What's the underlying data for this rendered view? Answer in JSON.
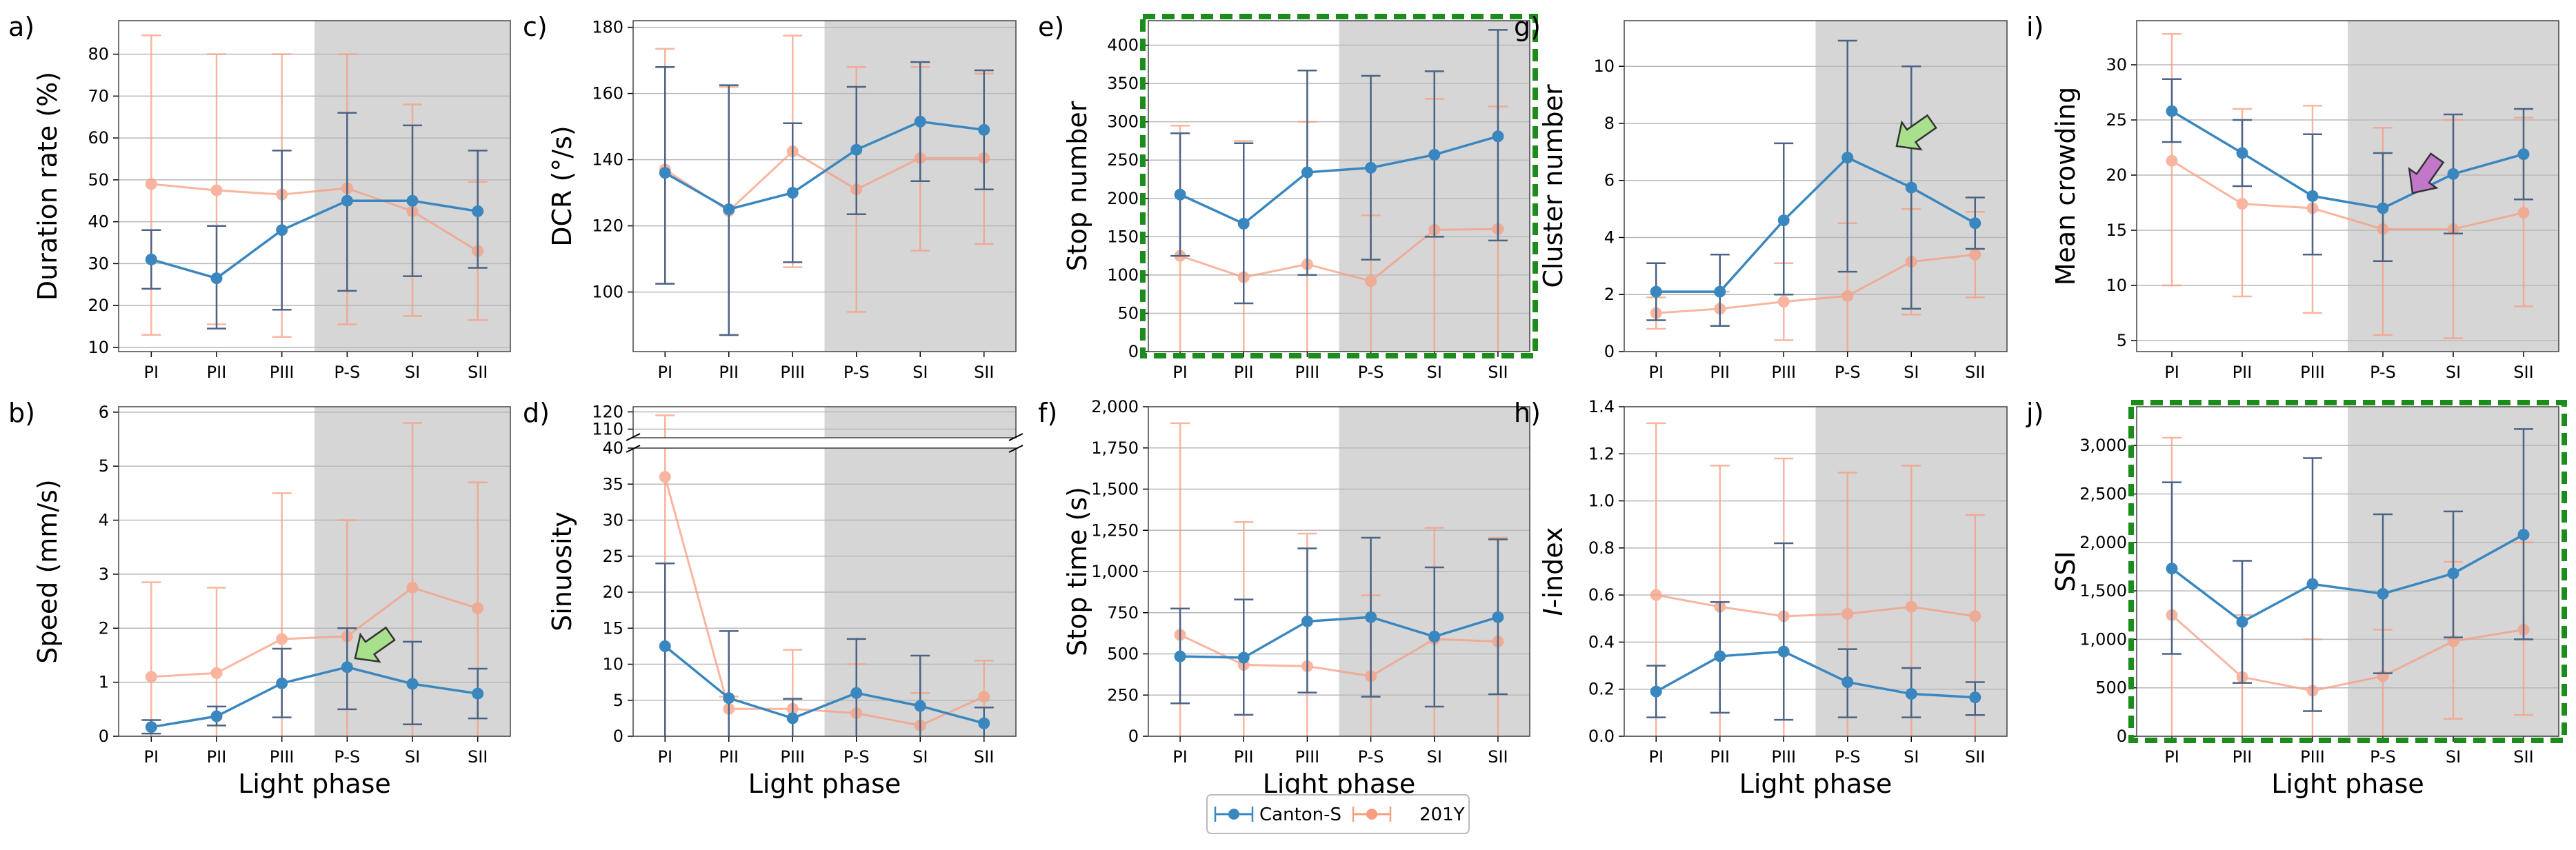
{
  "legend": {
    "series": [
      "Canton-S",
      "201Y"
    ]
  },
  "colors": {
    "canton": "#3a87c0",
    "y201": "#f79d80",
    "dark": "#4b6384",
    "shade": "#d6d6d6",
    "highlight": "#1c8d1c",
    "arrow_green": "#a8e08c",
    "arrow_purple": "#c377c9"
  },
  "chart_data": [
    {
      "id": "a",
      "label": "a)",
      "type": "line",
      "ylabel": "Duration rate (%)",
      "xlabel": "",
      "categories": [
        "PI",
        "PII",
        "PIII",
        "P-S",
        "SI",
        "SII"
      ],
      "ylim": [
        9,
        88
      ],
      "yticks": [
        10,
        20,
        30,
        40,
        50,
        60,
        70,
        80
      ],
      "ytick_labels": [
        "10",
        "20",
        "30",
        "40",
        "50",
        "60",
        "70",
        "80"
      ],
      "series": [
        {
          "name": "Canton-S",
          "values": [
            31,
            26.5,
            38,
            45,
            45,
            42.5
          ],
          "err_lo": [
            24,
            14.5,
            19,
            23.5,
            27,
            29
          ],
          "err_hi": [
            38,
            39,
            57,
            66,
            63,
            57
          ]
        },
        {
          "name": "201Y",
          "values": [
            49,
            47.5,
            46.5,
            48,
            42.5,
            33
          ],
          "err_lo": [
            13,
            15.5,
            12.5,
            15.5,
            17.5,
            16.5
          ],
          "err_hi": [
            84.5,
            80,
            80,
            80,
            68,
            49.5
          ]
        }
      ]
    },
    {
      "id": "b",
      "label": "b)",
      "type": "line",
      "ylabel": "Speed (mm/s)",
      "xlabel": "Light phase",
      "categories": [
        "PI",
        "PII",
        "PIII",
        "P-S",
        "SI",
        "SII"
      ],
      "ylim": [
        0,
        6.1
      ],
      "yticks": [
        0,
        1,
        2,
        3,
        4,
        5,
        6
      ],
      "ytick_labels": [
        "0",
        "1",
        "2",
        "3",
        "4",
        "5",
        "6"
      ],
      "series": [
        {
          "name": "Canton-S",
          "values": [
            0.17,
            0.37,
            0.98,
            1.28,
            0.97,
            0.79
          ],
          "err_lo": [
            0.05,
            0.2,
            0.35,
            0.5,
            0.22,
            0.33
          ],
          "err_hi": [
            0.3,
            0.55,
            1.62,
            2.0,
            1.75,
            1.25
          ]
        },
        {
          "name": "201Y",
          "values": [
            1.1,
            1.17,
            1.8,
            1.85,
            2.75,
            2.37
          ],
          "err_lo": [
            0,
            0,
            0,
            0,
            0,
            0
          ],
          "err_hi": [
            2.85,
            2.75,
            4.5,
            4.0,
            5.8,
            4.7
          ]
        }
      ]
    },
    {
      "id": "c",
      "label": "c)",
      "type": "line",
      "ylabel": "DCR (°/s)",
      "xlabel": "",
      "categories": [
        "PI",
        "PII",
        "PIII",
        "P-S",
        "SI",
        "SII"
      ],
      "ylim": [
        82,
        182
      ],
      "yticks": [
        100,
        120,
        140,
        160,
        180
      ],
      "ytick_labels": [
        "100",
        "120",
        "140",
        "160",
        "180"
      ],
      "series": [
        {
          "name": "Canton-S",
          "values": [
            136,
            125,
            130,
            143,
            151.5,
            149
          ],
          "err_lo": [
            102.5,
            87,
            109,
            123.5,
            133.5,
            131
          ],
          "err_hi": [
            168,
            162.5,
            151,
            162,
            169.5,
            167
          ]
        },
        {
          "name": "201Y",
          "values": [
            137,
            124.5,
            142.5,
            131,
            140.5,
            140.5
          ],
          "err_lo": [
            102.5,
            87,
            107.5,
            94,
            112.5,
            114.5
          ],
          "err_hi": [
            173.5,
            162,
            177.5,
            168,
            168,
            166
          ]
        }
      ]
    },
    {
      "id": "d",
      "label": "d)",
      "type": "line",
      "ylabel": "Sinuosity",
      "xlabel": "Light phase",
      "categories": [
        "PI",
        "PII",
        "PIII",
        "P-S",
        "SI",
        "SII"
      ],
      "ylim": [
        0,
        40
      ],
      "yticks": [
        0,
        5,
        10,
        15,
        20,
        25,
        30,
        35,
        40
      ],
      "ytick_labels": [
        "0",
        "5",
        "10",
        "15",
        "20",
        "25",
        "30",
        "35",
        "40"
      ],
      "upper_ylim": [
        105,
        123
      ],
      "upper_yticks": [
        110,
        120
      ],
      "upper_ytick_labels": [
        "110",
        "120"
      ],
      "series": [
        {
          "name": "Canton-S",
          "values": [
            12.5,
            5.3,
            2.5,
            6,
            4.2,
            1.8
          ],
          "err_lo": [
            0,
            0,
            0,
            0,
            0,
            0
          ],
          "err_hi": [
            24,
            14.6,
            5.2,
            13.5,
            11.2,
            4
          ],
          "err_hi_over": [
            null,
            null,
            null,
            null,
            null,
            null
          ]
        },
        {
          "name": "201Y",
          "values": [
            36,
            3.8,
            3.8,
            3.2,
            1.5,
            5.5
          ],
          "err_lo": [
            0,
            0,
            0,
            0,
            0,
            0
          ],
          "err_hi": [
            40,
            5.5,
            12,
            10,
            6,
            10.5
          ],
          "err_hi_over": [
            118,
            null,
            null,
            null,
            null,
            null
          ]
        }
      ]
    },
    {
      "id": "e",
      "label": "e)",
      "type": "line",
      "ylabel": "Stop number",
      "xlabel": "",
      "highlight": true,
      "categories": [
        "PI",
        "PII",
        "PIII",
        "P-S",
        "SI",
        "SII"
      ],
      "ylim": [
        0,
        432
      ],
      "yticks": [
        0,
        50,
        100,
        150,
        200,
        250,
        300,
        350,
        400
      ],
      "ytick_labels": [
        "0",
        "50",
        "100",
        "150",
        "200",
        "250",
        "300",
        "350",
        "400"
      ],
      "series": [
        {
          "name": "Canton-S",
          "values": [
            205,
            167,
            234,
            240,
            257,
            281
          ],
          "err_lo": [
            125,
            63,
            100,
            120,
            150,
            145
          ],
          "err_hi": [
            285,
            272,
            367,
            360,
            366,
            420
          ]
        },
        {
          "name": "201Y",
          "values": [
            125,
            97,
            114,
            92,
            159,
            160
          ],
          "err_lo": [
            0,
            0,
            0,
            0,
            0,
            0
          ],
          "err_hi": [
            295,
            275,
            300,
            178,
            330,
            320
          ]
        }
      ]
    },
    {
      "id": "f",
      "label": "f)",
      "type": "line",
      "ylabel": "Stop time (s)",
      "xlabel": "Light phase",
      "categories": [
        "PI",
        "PII",
        "PIII",
        "P-S",
        "SI",
        "SII"
      ],
      "ylim": [
        0,
        2000
      ],
      "yticks": [
        0,
        250,
        500,
        750,
        1000,
        1250,
        1500,
        1750,
        2000
      ],
      "ytick_labels": [
        "0",
        "250",
        "500",
        "750",
        "1,000",
        "1,250",
        "1,500",
        "1,750",
        "2,000"
      ],
      "series": [
        {
          "name": "Canton-S",
          "values": [
            485,
            477,
            697,
            723,
            605,
            723
          ],
          "err_lo": [
            200,
            130,
            265,
            240,
            180,
            255
          ],
          "err_hi": [
            775,
            830,
            1140,
            1205,
            1025,
            1195
          ]
        },
        {
          "name": "201Y",
          "values": [
            615,
            433,
            425,
            365,
            590,
            575
          ],
          "err_lo": [
            0,
            0,
            0,
            0,
            0,
            0
          ],
          "err_hi": [
            1900,
            1300,
            1230,
            855,
            1265,
            1205
          ]
        }
      ]
    },
    {
      "id": "g",
      "label": "g)",
      "type": "line",
      "ylabel": "Cluster number",
      "xlabel": "",
      "categories": [
        "PI",
        "PII",
        "PIII",
        "P-S",
        "SI",
        "SII"
      ],
      "ylim": [
        0,
        11.6
      ],
      "yticks": [
        0,
        2,
        4,
        6,
        8,
        10
      ],
      "ytick_labels": [
        "0",
        "2",
        "4",
        "6",
        "8",
        "10"
      ],
      "series": [
        {
          "name": "Canton-S",
          "values": [
            2.1,
            2.1,
            4.6,
            6.8,
            5.75,
            4.5
          ],
          "err_lo": [
            1.1,
            0.9,
            2.0,
            2.8,
            1.5,
            3.6
          ],
          "err_hi": [
            3.1,
            3.4,
            7.3,
            10.9,
            10.0,
            5.4
          ]
        },
        {
          "name": "201Y",
          "values": [
            1.35,
            1.5,
            1.75,
            1.95,
            3.15,
            3.4
          ],
          "err_lo": [
            0.8,
            0.9,
            0.4,
            0,
            1.3,
            1.9
          ],
          "err_hi": [
            1.9,
            2.1,
            3.1,
            4.5,
            5.0,
            4.9
          ]
        }
      ]
    },
    {
      "id": "h",
      "label": "h)",
      "type": "line",
      "ylabel": "I-index",
      "ylabel_italic": "I",
      "ylabel_rest": "-index",
      "xlabel": "Light phase",
      "categories": [
        "PI",
        "PII",
        "PIII",
        "P-S",
        "SI",
        "SII"
      ],
      "ylim": [
        0,
        1.4
      ],
      "yticks": [
        0,
        0.2,
        0.4,
        0.6,
        0.8,
        1.0,
        1.2,
        1.4
      ],
      "ytick_labels": [
        "0.0",
        "0.2",
        "0.4",
        "0.6",
        "0.8",
        "1.0",
        "1.2",
        "1.4"
      ],
      "series": [
        {
          "name": "Canton-S",
          "values": [
            0.19,
            0.34,
            0.36,
            0.23,
            0.18,
            0.165
          ],
          "err_lo": [
            0.08,
            0.1,
            0.07,
            0.08,
            0.08,
            0.09
          ],
          "err_hi": [
            0.3,
            0.57,
            0.82,
            0.37,
            0.29,
            0.23
          ]
        },
        {
          "name": "201Y",
          "values": [
            0.6,
            0.55,
            0.51,
            0.52,
            0.55,
            0.51
          ],
          "err_lo": [
            0,
            0,
            0,
            0,
            0,
            0
          ],
          "err_hi": [
            1.33,
            1.15,
            1.18,
            1.12,
            1.15,
            0.94
          ]
        }
      ]
    },
    {
      "id": "i",
      "label": "i)",
      "type": "line",
      "ylabel": "Mean crowding",
      "xlabel": "",
      "categories": [
        "PI",
        "PII",
        "PIII",
        "P-S",
        "SI",
        "SII"
      ],
      "ylim": [
        4,
        34
      ],
      "yticks": [
        5,
        10,
        15,
        20,
        25,
        30
      ],
      "ytick_labels": [
        "5",
        "10",
        "15",
        "20",
        "25",
        "30"
      ],
      "series": [
        {
          "name": "Canton-S",
          "values": [
            25.8,
            22,
            18.1,
            17,
            20.1,
            21.9
          ],
          "err_lo": [
            23,
            19,
            12.8,
            12.2,
            14.7,
            17.8
          ],
          "err_hi": [
            28.7,
            25,
            23.7,
            22,
            25.5,
            26
          ]
        },
        {
          "name": "201Y",
          "values": [
            21.3,
            17.4,
            17,
            15.1,
            15.1,
            16.6
          ],
          "err_lo": [
            10,
            9,
            7.5,
            5.5,
            5.2,
            8.1
          ],
          "err_hi": [
            32.8,
            26,
            26.3,
            24.3,
            25,
            25.2
          ]
        }
      ]
    },
    {
      "id": "j",
      "label": "j)",
      "type": "line",
      "ylabel": "SSI",
      "xlabel": "Light phase",
      "highlight": true,
      "categories": [
        "PI",
        "PII",
        "PIII",
        "P-S",
        "SI",
        "SII"
      ],
      "ylim": [
        0,
        3400
      ],
      "yticks": [
        0,
        500,
        1000,
        1500,
        2000,
        2500,
        3000
      ],
      "ytick_labels": [
        "0",
        "500",
        "1,000",
        "1,500",
        "2,000",
        "2,500",
        "3,000"
      ],
      "series": [
        {
          "name": "Canton-S",
          "values": [
            1730,
            1180,
            1570,
            1470,
            1680,
            2080
          ],
          "err_lo": [
            850,
            550,
            260,
            650,
            1020,
            1000
          ],
          "err_hi": [
            2620,
            1810,
            2870,
            2290,
            2320,
            3170
          ]
        },
        {
          "name": "201Y",
          "values": [
            1250,
            610,
            470,
            620,
            980,
            1100
          ],
          "err_lo": [
            0,
            0,
            0,
            0,
            180,
            220
          ],
          "err_hi": [
            3080,
            1250,
            1000,
            1100,
            1800,
            2000
          ]
        }
      ]
    }
  ]
}
